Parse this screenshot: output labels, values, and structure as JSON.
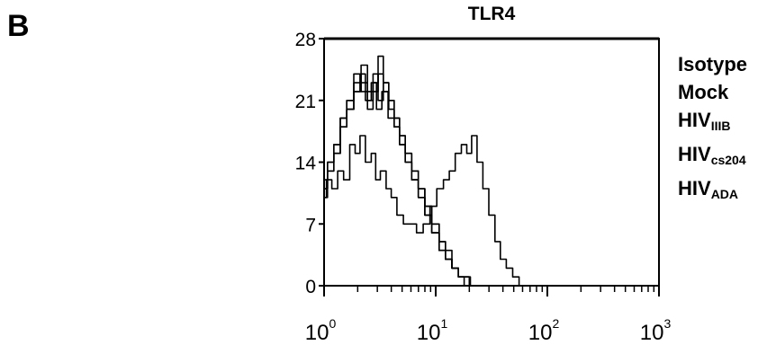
{
  "panel_label": "B",
  "chart_data": {
    "type": "line",
    "title": "TLR4",
    "xlabel": "",
    "ylabel": "",
    "xscale": "log",
    "xlim": [
      1,
      1000
    ],
    "ylim": [
      0,
      28
    ],
    "y_ticks": [
      "0",
      "7",
      "14",
      "21",
      "28"
    ],
    "x_ticks": [
      {
        "base": "10",
        "exp": "0"
      },
      {
        "base": "10",
        "exp": "1"
      },
      {
        "base": "10",
        "exp": "2"
      },
      {
        "base": "10",
        "exp": "3"
      }
    ],
    "legend_position": "right",
    "legend": [
      {
        "text": "Isotype",
        "sub": ""
      },
      {
        "text": "Mock",
        "sub": ""
      },
      {
        "text": "HIV",
        "sub": "IIIB"
      },
      {
        "text": "HIV",
        "sub": "cs204"
      },
      {
        "text": "HIV",
        "sub": "ADA"
      }
    ],
    "series": [
      {
        "x": [
          1,
          1.1,
          1.25,
          1.4,
          1.6,
          1.8,
          2,
          2.2,
          2.5,
          2.8,
          3,
          3.4,
          3.8,
          4.2,
          4.8,
          5.5,
          6.3,
          7.2,
          8.3,
          9.5,
          11,
          12.5,
          14,
          16,
          18,
          20,
          22,
          25,
          28,
          32,
          36,
          40,
          46,
          52,
          60
        ],
        "y": [
          10,
          12,
          11,
          13,
          12,
          16,
          15,
          17,
          14,
          15,
          12,
          13,
          11,
          10,
          8,
          7,
          7,
          6,
          7,
          9,
          11,
          12,
          13,
          15,
          16,
          15,
          17,
          14,
          11,
          8,
          5,
          3,
          2,
          1,
          0
        ]
      },
      {
        "x": [
          1,
          1.15,
          1.3,
          1.5,
          1.7,
          2,
          2.2,
          2.5,
          2.8,
          3.1,
          3.5,
          4,
          4.5,
          5,
          5.7,
          6.5,
          7.5,
          8.5,
          10,
          11.5,
          13,
          15,
          17,
          19,
          21,
          23
        ],
        "y": [
          11,
          13,
          15,
          19,
          20,
          22,
          24,
          21,
          23,
          20,
          22,
          19,
          18,
          16,
          14,
          12,
          10,
          8,
          6,
          4,
          3,
          2,
          1,
          1,
          0,
          0
        ]
      },
      {
        "x": [
          1,
          1.15,
          1.3,
          1.5,
          1.7,
          2,
          2.3,
          2.6,
          2.9,
          3.2,
          3.6,
          4,
          4.5,
          5,
          5.7,
          6.5,
          7.5,
          8.5,
          10,
          11.5,
          13,
          15,
          17,
          19,
          22
        ],
        "y": [
          12,
          14,
          16,
          18,
          21,
          23,
          25,
          22,
          24,
          21,
          23,
          21,
          19,
          17,
          15,
          13,
          11,
          9,
          7,
          5,
          4,
          2,
          1,
          1,
          0
        ]
      },
      {
        "x": [
          1,
          1.15,
          1.3,
          1.5,
          1.7,
          2,
          2.3,
          2.6,
          2.9,
          3.2,
          3.6,
          4,
          4.5,
          5,
          5.7,
          6.5,
          7.5,
          8.5,
          10,
          11.5,
          13,
          15,
          17,
          19,
          21
        ],
        "y": [
          10,
          13,
          15,
          18,
          20,
          22,
          23,
          21,
          22,
          24,
          22,
          20,
          18,
          16,
          14,
          12,
          10,
          8,
          6,
          4,
          3,
          2,
          1,
          0,
          0
        ]
      },
      {
        "x": [
          1,
          1.15,
          1.3,
          1.5,
          1.7,
          2,
          2.3,
          2.6,
          2.9,
          3.2,
          3.6,
          4,
          4.5,
          5,
          5.7,
          6.5,
          7.5,
          8.5,
          10,
          11.5,
          13,
          15,
          17,
          19,
          21
        ],
        "y": [
          11,
          14,
          16,
          19,
          21,
          24,
          22,
          20,
          23,
          26,
          23,
          21,
          19,
          17,
          15,
          13,
          11,
          9,
          7,
          5,
          3,
          2,
          1,
          1,
          0
        ]
      }
    ]
  }
}
